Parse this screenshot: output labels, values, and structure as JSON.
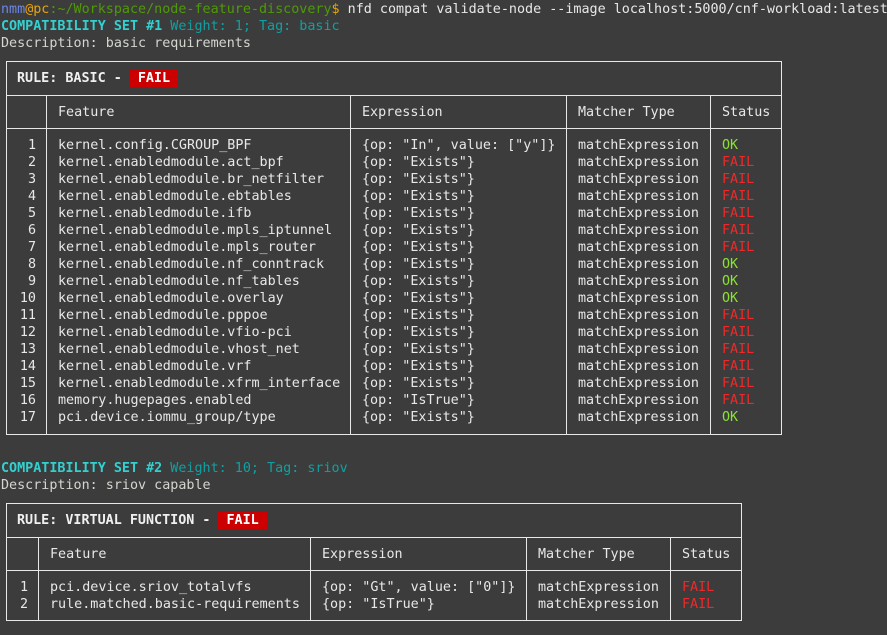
{
  "prompt": {
    "user": "nmm",
    "at": "@",
    "host": "pc",
    "path": ":~/Workspace/node-feature-discovery",
    "dollar": "$",
    "command": " nfd compat validate-node --image localhost:5000/cnf-workload:latest"
  },
  "colors": {
    "ok": "#8ae234",
    "fail": "#ef2929",
    "badge": "#cc0000",
    "set_title": "#34d0d0",
    "meta": "#11a0a2"
  },
  "columns": [
    "Feature",
    "Expression",
    "Matcher Type",
    "Status"
  ],
  "sets": [
    {
      "title": "COMPATIBILITY SET #1",
      "meta": " Weight: 1; Tag: basic",
      "description": "Description: basic requirements",
      "rule": "RULE: BASIC -",
      "rule_status": "FAIL",
      "rows": [
        [
          "1",
          "kernel.config.CGROUP_BPF",
          "{op: \"In\", value: [\"y\"]}",
          "matchExpression",
          "OK"
        ],
        [
          "2",
          "kernel.enabledmodule.act_bpf",
          "{op: \"Exists\"}",
          "matchExpression",
          "FAIL"
        ],
        [
          "3",
          "kernel.enabledmodule.br_netfilter",
          "{op: \"Exists\"}",
          "matchExpression",
          "FAIL"
        ],
        [
          "4",
          "kernel.enabledmodule.ebtables",
          "{op: \"Exists\"}",
          "matchExpression",
          "FAIL"
        ],
        [
          "5",
          "kernel.enabledmodule.ifb",
          "{op: \"Exists\"}",
          "matchExpression",
          "FAIL"
        ],
        [
          "6",
          "kernel.enabledmodule.mpls_iptunnel",
          "{op: \"Exists\"}",
          "matchExpression",
          "FAIL"
        ],
        [
          "7",
          "kernel.enabledmodule.mpls_router",
          "{op: \"Exists\"}",
          "matchExpression",
          "FAIL"
        ],
        [
          "8",
          "kernel.enabledmodule.nf_conntrack",
          "{op: \"Exists\"}",
          "matchExpression",
          "OK"
        ],
        [
          "9",
          "kernel.enabledmodule.nf_tables",
          "{op: \"Exists\"}",
          "matchExpression",
          "OK"
        ],
        [
          "10",
          "kernel.enabledmodule.overlay",
          "{op: \"Exists\"}",
          "matchExpression",
          "OK"
        ],
        [
          "11",
          "kernel.enabledmodule.pppoe",
          "{op: \"Exists\"}",
          "matchExpression",
          "FAIL"
        ],
        [
          "12",
          "kernel.enabledmodule.vfio-pci",
          "{op: \"Exists\"}",
          "matchExpression",
          "FAIL"
        ],
        [
          "13",
          "kernel.enabledmodule.vhost_net",
          "{op: \"Exists\"}",
          "matchExpression",
          "FAIL"
        ],
        [
          "14",
          "kernel.enabledmodule.vrf",
          "{op: \"Exists\"}",
          "matchExpression",
          "FAIL"
        ],
        [
          "15",
          "kernel.enabledmodule.xfrm_interface",
          "{op: \"Exists\"}",
          "matchExpression",
          "FAIL"
        ],
        [
          "16",
          "memory.hugepages.enabled",
          "{op: \"IsTrue\"}",
          "matchExpression",
          "FAIL"
        ],
        [
          "17",
          "pci.device.iommu_group/type",
          "{op: \"Exists\"}",
          "matchExpression",
          "OK"
        ]
      ]
    },
    {
      "title": "COMPATIBILITY SET #2",
      "meta": " Weight: 10; Tag: sriov",
      "description": "Description: sriov capable",
      "rule": "RULE: VIRTUAL FUNCTION -",
      "rule_status": "FAIL",
      "rows": [
        [
          "1",
          "pci.device.sriov_totalvfs",
          "{op: \"Gt\", value: [\"0\"]}",
          "matchExpression",
          "FAIL"
        ],
        [
          "2",
          "rule.matched.basic-requirements",
          "{op: \"IsTrue\"}",
          "matchExpression",
          "FAIL"
        ]
      ]
    }
  ]
}
